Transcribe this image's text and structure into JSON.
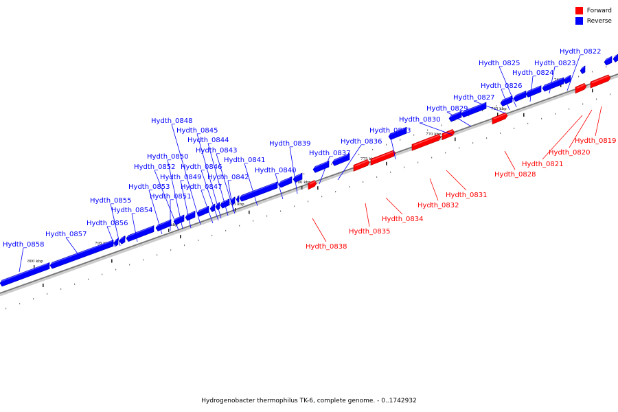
{
  "legend": {
    "forward_label": "Forward",
    "reverse_label": "Reverse",
    "forward_color": "#ff0000",
    "reverse_color": "#0000ff"
  },
  "caption": "Hydrogenobacter thermophilus TK-6, complete genome. - 0..1742932",
  "colors": {
    "forward": "#ff0000",
    "reverse": "#0000ff",
    "axis": "#777777"
  },
  "kbp_labels": [
    "760 kbp",
    "765 kbp",
    "770 kbp",
    "775 kbp",
    "780 kbp",
    "785 kbp",
    "790 kbp",
    "795 kbp",
    "800 kbp"
  ],
  "reverse_genes": [
    "Hydth_0822",
    "Hydth_0823",
    "Hydth_0824",
    "Hydth_0825",
    "Hydth_0826",
    "Hydth_0827",
    "Hydth_0829",
    "Hydth_0830",
    "Hydth_0833",
    "Hydth_0836",
    "Hydth_0837",
    "Hydth_0839",
    "Hydth_0840",
    "Hydth_0841",
    "Hydth_0842",
    "Hydth_0843",
    "Hydth_0844",
    "Hydth_0845",
    "Hydth_0846",
    "Hydth_0847",
    "Hydth_0848",
    "Hydth_0849",
    "Hydth_0850",
    "Hydth_0851",
    "Hydth_0852",
    "Hydth_0853",
    "Hydth_0854",
    "Hydth_0855",
    "Hydth_0856",
    "Hydth_0857",
    "Hydth_0858"
  ],
  "forward_genes": [
    "Hydth_0819",
    "Hydth_0820",
    "Hydth_0821",
    "Hydth_0828",
    "Hydth_0831",
    "Hydth_0832",
    "Hydth_0834",
    "Hydth_0835",
    "Hydth_0838"
  ]
}
